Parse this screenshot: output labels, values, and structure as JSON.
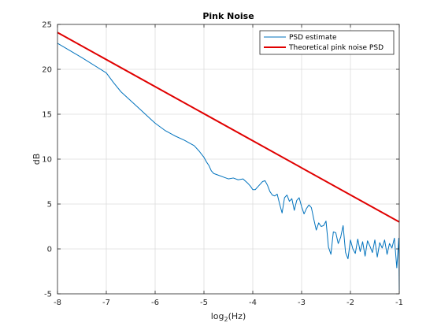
{
  "chart_data": {
    "type": "line",
    "title": "Pink Noise",
    "xlabel_main": "log",
    "xlabel_sub": "2",
    "xlabel_rest": "(Hz)",
    "ylabel": "dB",
    "xlim": [
      -8,
      -1
    ],
    "ylim": [
      -5,
      25
    ],
    "xticks": [
      -8,
      -7,
      -6,
      -5,
      -4,
      -3,
      -2,
      -1
    ],
    "yticks": [
      -5,
      0,
      5,
      10,
      15,
      20,
      25
    ],
    "grid": true,
    "legend_location": "top-right",
    "series": [
      {
        "name": "PSD estimate",
        "color": "#0072BD",
        "x": [
          -8,
          -7.5,
          -7,
          -6.85,
          -6.7,
          -6.5,
          -6.3,
          -6.1,
          -6.0,
          -5.8,
          -5.6,
          -5.4,
          -5.2,
          -5.1,
          -5.0,
          -4.95,
          -4.9,
          -4.85,
          -4.8,
          -4.75,
          -4.7,
          -4.6,
          -4.5,
          -4.4,
          -4.3,
          -4.2,
          -4.1,
          -4.05,
          -4.0,
          -3.95,
          -3.9,
          -3.85,
          -3.8,
          -3.75,
          -3.7,
          -3.65,
          -3.6,
          -3.55,
          -3.5,
          -3.45,
          -3.4,
          -3.35,
          -3.3,
          -3.25,
          -3.2,
          -3.15,
          -3.1,
          -3.05,
          -3.0,
          -2.95,
          -2.9,
          -2.85,
          -2.8,
          -2.75,
          -2.7,
          -2.65,
          -2.6,
          -2.55,
          -2.5,
          -2.45,
          -2.4,
          -2.35,
          -2.3,
          -2.25,
          -2.2,
          -2.15,
          -2.1,
          -2.05,
          -2.0,
          -1.95,
          -1.9,
          -1.85,
          -1.8,
          -1.75,
          -1.7,
          -1.65,
          -1.6,
          -1.55,
          -1.5,
          -1.45,
          -1.4,
          -1.35,
          -1.3,
          -1.25,
          -1.2,
          -1.15,
          -1.1,
          -1.05,
          -1.01,
          -1.0
        ],
        "y": [
          22.9,
          21.3,
          19.6,
          18.5,
          17.5,
          16.5,
          15.5,
          14.5,
          14.0,
          13.2,
          12.6,
          12.1,
          11.5,
          10.9,
          10.2,
          9.7,
          9.3,
          8.7,
          8.4,
          8.3,
          8.2,
          8.0,
          7.8,
          7.9,
          7.7,
          7.8,
          7.3,
          7.0,
          6.6,
          6.6,
          6.9,
          7.2,
          7.5,
          7.6,
          7.1,
          6.4,
          6.0,
          5.9,
          6.1,
          5.0,
          4.0,
          5.7,
          6.0,
          5.3,
          5.6,
          4.3,
          5.4,
          5.7,
          4.7,
          3.9,
          4.5,
          4.9,
          4.6,
          3.3,
          2.1,
          2.9,
          2.5,
          2.6,
          3.1,
          0.2,
          -0.6,
          1.9,
          1.8,
          0.6,
          1.3,
          2.6,
          -0.4,
          -1.1,
          1.0,
          0.0,
          -0.5,
          1.1,
          -0.3,
          0.8,
          -0.8,
          0.9,
          0.3,
          -0.4,
          1.0,
          -0.9,
          0.7,
          0.1,
          1.0,
          -0.6,
          0.6,
          0.1,
          1.2,
          -2.1,
          1.2,
          -4.6
        ]
      },
      {
        "name": "Theoretical pink noise PSD",
        "color": "#E00000",
        "x": [
          -8,
          -1
        ],
        "y": [
          24.1,
          3.0
        ]
      }
    ]
  }
}
